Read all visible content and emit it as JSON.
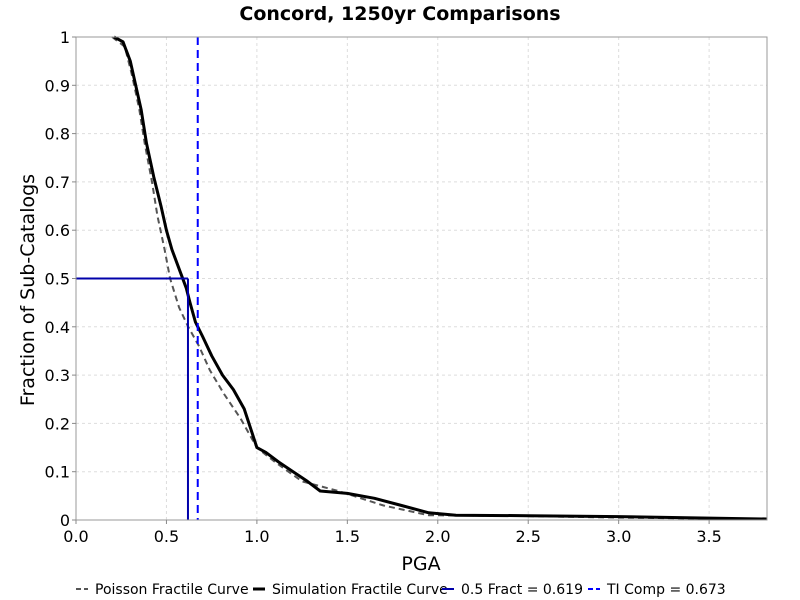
{
  "chart_data": {
    "type": "line",
    "title": "Concord, 1250yr Comparisons",
    "xlabel": "PGA",
    "ylabel": "Fraction of Sub-Catalogs",
    "xlim": [
      0.0,
      3.82
    ],
    "ylim": [
      0,
      1
    ],
    "x_ticks": [
      "0.0",
      "0.5",
      "1.0",
      "1.5",
      "2.0",
      "2.5",
      "3.0",
      "3.5"
    ],
    "y_ticks": [
      "0",
      "0.1",
      "0.2",
      "0.3",
      "0.4",
      "0.5",
      "0.6",
      "0.7",
      "0.8",
      "0.9",
      "1"
    ],
    "grid": true,
    "legend_position": "bottom",
    "colors": {
      "poisson": "#555555",
      "simulation": "#000000",
      "fract": "#0000aa",
      "ti": "#0000ff",
      "grid": "#dddddd",
      "frame": "#999999"
    },
    "series": [
      {
        "name": "Poisson Fractile Curve",
        "style": "dashed",
        "x": [
          0.2,
          0.27,
          0.31,
          0.35,
          0.38,
          0.42,
          0.45,
          0.49,
          0.52,
          0.57,
          0.62,
          0.68,
          0.74,
          0.82,
          0.91,
          1.0,
          1.1,
          1.25,
          1.45,
          1.7,
          1.95,
          2.5,
          3.0,
          3.5,
          3.82
        ],
        "y": [
          1.0,
          0.98,
          0.92,
          0.85,
          0.78,
          0.7,
          0.63,
          0.56,
          0.5,
          0.44,
          0.4,
          0.36,
          0.31,
          0.26,
          0.21,
          0.15,
          0.12,
          0.08,
          0.06,
          0.03,
          0.01,
          0.008,
          0.005,
          0.003,
          0.002
        ]
      },
      {
        "name": "Simulation Fractile Curve",
        "style": "solid",
        "x": [
          0.21,
          0.26,
          0.3,
          0.33,
          0.36,
          0.39,
          0.43,
          0.47,
          0.5,
          0.53,
          0.58,
          0.61,
          0.63,
          0.66,
          0.7,
          0.75,
          0.81,
          0.87,
          0.93,
          1.0,
          1.05,
          1.12,
          1.2,
          1.28,
          1.35,
          1.5,
          1.65,
          1.8,
          1.95,
          2.1,
          2.5,
          3.0,
          3.5,
          3.82
        ],
        "y": [
          1.0,
          0.99,
          0.95,
          0.9,
          0.85,
          0.78,
          0.71,
          0.65,
          0.6,
          0.56,
          0.51,
          0.48,
          0.45,
          0.41,
          0.38,
          0.34,
          0.3,
          0.27,
          0.23,
          0.15,
          0.14,
          0.12,
          0.1,
          0.08,
          0.06,
          0.055,
          0.045,
          0.03,
          0.015,
          0.01,
          0.009,
          0.007,
          0.004,
          0.002
        ]
      }
    ],
    "reference_lines": [
      {
        "name": "0.5 Fract = 0.619",
        "x": 0.619,
        "y": 0.5,
        "style": "solid"
      },
      {
        "name": "TI Comp = 0.673",
        "x": 0.673,
        "style": "dashed"
      }
    ]
  }
}
